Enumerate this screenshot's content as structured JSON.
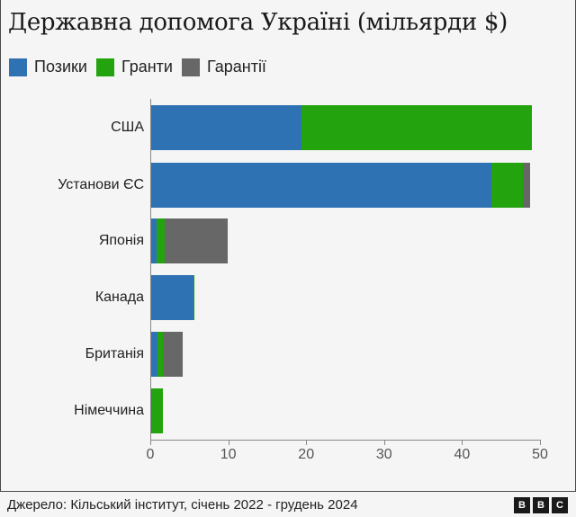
{
  "title": "Державна допомога Україні (мільярди $)",
  "legend": [
    {
      "label": "Позики",
      "color": "#2e72b3"
    },
    {
      "label": "Гранти",
      "color": "#23a30d"
    },
    {
      "label": "Гарантії",
      "color": "#676767"
    }
  ],
  "footer": {
    "source": "Джерело: Кільський інститут, січень 2022 - грудень 2024",
    "logo": [
      "B",
      "B",
      "C"
    ]
  },
  "chart_data": {
    "type": "bar",
    "orientation": "horizontal",
    "stacked": true,
    "title": "Державна допомога Україні (мільярди $)",
    "xlabel": "",
    "ylabel": "",
    "xlim": [
      0,
      50
    ],
    "xticks": [
      0,
      10,
      20,
      30,
      40,
      50
    ],
    "legend_position": "top-left",
    "grid": false,
    "categories": [
      "США",
      "Установи ЄС",
      "Японія",
      "Канада",
      "Британія",
      "Німеччина"
    ],
    "series": [
      {
        "name": "Позики",
        "color": "#2e72b3",
        "values": [
          19.3,
          43.6,
          0.7,
          5.4,
          0.8,
          0.1
        ]
      },
      {
        "name": "Гранти",
        "color": "#23a30d",
        "values": [
          29.5,
          4.1,
          1.0,
          0.1,
          0.7,
          1.4
        ]
      },
      {
        "name": "Гарантії",
        "color": "#676767",
        "values": [
          0.0,
          0.9,
          8.1,
          0.0,
          2.5,
          0.0
        ]
      }
    ]
  }
}
